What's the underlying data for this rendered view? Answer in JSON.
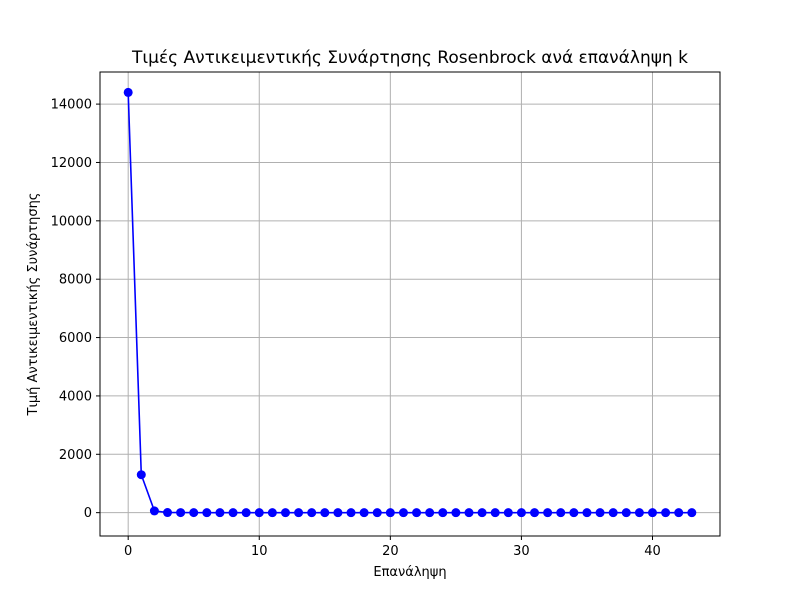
{
  "chart_data": {
    "type": "line",
    "title": "Τιμές Αντικειμεντικής Συνάρτησης Rosenbrock ανά επανάληψη k",
    "xlabel": "Επανάληψη",
    "ylabel": "Τιμή Αντικειμεντικής Συνάρτησης",
    "xlim": [
      -2.15,
      45.15
    ],
    "ylim": [
      -800,
      15100
    ],
    "xticks": [
      0,
      10,
      20,
      30,
      40
    ],
    "yticks": [
      0,
      2000,
      4000,
      6000,
      8000,
      10000,
      12000,
      14000
    ],
    "grid": true,
    "marker": "circle",
    "series": [
      {
        "color": "#0000ff",
        "x": [
          0,
          1,
          2,
          3,
          4,
          5,
          6,
          7,
          8,
          9,
          10,
          11,
          12,
          13,
          14,
          15,
          16,
          17,
          18,
          19,
          20,
          21,
          22,
          23,
          24,
          25,
          26,
          27,
          28,
          29,
          30,
          31,
          32,
          33,
          34,
          35,
          36,
          37,
          38,
          39,
          40,
          41,
          42,
          43
        ],
        "values": [
          14400,
          1300,
          60,
          5,
          2,
          1,
          0.5,
          0.3,
          0.2,
          0.1,
          0.1,
          0.05,
          0.05,
          0.03,
          0.02,
          0.02,
          0.01,
          0.01,
          0.01,
          0.01,
          0.005,
          0.005,
          0.004,
          0.003,
          0.003,
          0.002,
          0.002,
          0.002,
          0.001,
          0.001,
          0.001,
          0.001,
          0.001,
          0.0005,
          0.0005,
          0.0005,
          0.0004,
          0.0003,
          0.0003,
          0.0002,
          0.0002,
          0.0001,
          0.0001,
          0.0001
        ]
      }
    ]
  }
}
